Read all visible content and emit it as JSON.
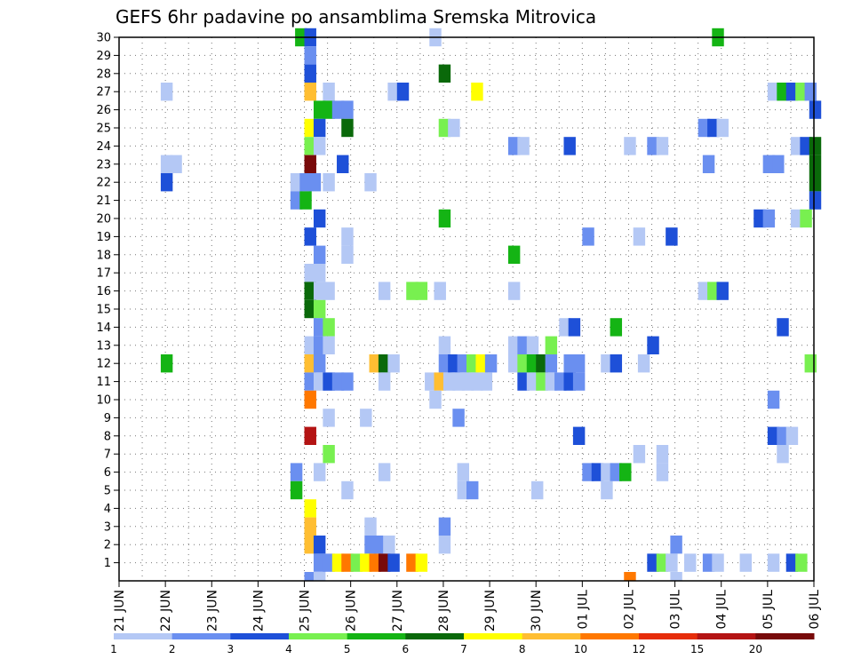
{
  "chart_data": {
    "type": "heatmap",
    "title": "GEFS 6hr padavine po ansamblima Sremska Mitrovica",
    "xlabel": "",
    "ylabel": "",
    "y_ticks": [
      "1",
      "2",
      "3",
      "4",
      "5",
      "6",
      "7",
      "8",
      "9",
      "10",
      "11",
      "12",
      "13",
      "14",
      "15",
      "16",
      "17",
      "18",
      "19",
      "20",
      "21",
      "22",
      "23",
      "24",
      "25",
      "26",
      "27",
      "28",
      "29",
      "30"
    ],
    "x_ticks": [
      "21 JUN",
      "22 JUN",
      "23 JUN",
      "24 JUN",
      "25 JUN",
      "26 JUN",
      "27 JUN",
      "28 JUN",
      "29 JUN",
      "30 JUN",
      "01 JUL",
      "02 JUL",
      "03 JUL",
      "04 JUL",
      "05 JUL",
      "06 JUL"
    ],
    "x_range_days": [
      0,
      15
    ],
    "y_range": [
      0,
      30
    ],
    "grid": true,
    "colorbar": {
      "labels": [
        "1",
        "2",
        "3",
        "4",
        "5",
        "6",
        "7",
        "8",
        "10",
        "12",
        "15",
        "20"
      ],
      "colors": [
        "#b4c8f5",
        "#6a8ff0",
        "#1e50d8",
        "#78f050",
        "#14b414",
        "#0a690a",
        "#ffff00",
        "#ffbe32",
        "#ff7800",
        "#e62d0a",
        "#b41414",
        "#780a0a"
      ]
    },
    "cells": [
      [
        30,
        3.8,
        5
      ],
      [
        30,
        4.0,
        3
      ],
      [
        30,
        6.7,
        1
      ],
      [
        30,
        12.8,
        5
      ],
      [
        29,
        4.0,
        2
      ],
      [
        28,
        4.0,
        3
      ],
      [
        28,
        6.9,
        6
      ],
      [
        27,
        0.9,
        1
      ],
      [
        27,
        4.0,
        8
      ],
      [
        27,
        4.4,
        1
      ],
      [
        27,
        5.8,
        1
      ],
      [
        27,
        6.0,
        3
      ],
      [
        27,
        7.6,
        7
      ],
      [
        27,
        14.0,
        1
      ],
      [
        27,
        14.2,
        5
      ],
      [
        27,
        14.4,
        3
      ],
      [
        27,
        14.6,
        4
      ],
      [
        27,
        14.8,
        2
      ],
      [
        26,
        4.2,
        5
      ],
      [
        26,
        4.4,
        5
      ],
      [
        26,
        4.6,
        2
      ],
      [
        26,
        4.8,
        2
      ],
      [
        26,
        14.9,
        3
      ],
      [
        25,
        4.0,
        7
      ],
      [
        25,
        4.2,
        3
      ],
      [
        25,
        4.8,
        6
      ],
      [
        25,
        6.9,
        4
      ],
      [
        25,
        7.1,
        1
      ],
      [
        25,
        12.5,
        2
      ],
      [
        25,
        12.7,
        3
      ],
      [
        25,
        12.9,
        1
      ],
      [
        24,
        4.0,
        4
      ],
      [
        24,
        4.2,
        1
      ],
      [
        24,
        8.4,
        2
      ],
      [
        24,
        8.6,
        1
      ],
      [
        24,
        9.6,
        3
      ],
      [
        24,
        10.9,
        1
      ],
      [
        24,
        11.4,
        2
      ],
      [
        24,
        11.6,
        1
      ],
      [
        24,
        14.5,
        1
      ],
      [
        24,
        14.7,
        3
      ],
      [
        24,
        14.9,
        6
      ],
      [
        23,
        0.9,
        1
      ],
      [
        23,
        1.1,
        1
      ],
      [
        23,
        4.0,
        12
      ],
      [
        23,
        4.7,
        3
      ],
      [
        23,
        12.6,
        2
      ],
      [
        23,
        13.9,
        2
      ],
      [
        23,
        14.1,
        2
      ],
      [
        23,
        14.9,
        6
      ],
      [
        22,
        0.9,
        3
      ],
      [
        22,
        3.7,
        1
      ],
      [
        22,
        3.9,
        2
      ],
      [
        22,
        4.1,
        2
      ],
      [
        22,
        4.4,
        1
      ],
      [
        22,
        5.3,
        1
      ],
      [
        22,
        14.9,
        6
      ],
      [
        21,
        3.7,
        2
      ],
      [
        21,
        3.9,
        5
      ],
      [
        21,
        14.9,
        3
      ],
      [
        20,
        4.2,
        3
      ],
      [
        20,
        6.9,
        5
      ],
      [
        20,
        13.7,
        3
      ],
      [
        20,
        13.9,
        2
      ],
      [
        20,
        14.5,
        1
      ],
      [
        20,
        14.7,
        4
      ],
      [
        19,
        4.0,
        3
      ],
      [
        19,
        4.8,
        1
      ],
      [
        19,
        10.0,
        2
      ],
      [
        19,
        11.1,
        1
      ],
      [
        19,
        11.8,
        3
      ],
      [
        18,
        4.2,
        2
      ],
      [
        18,
        4.8,
        1
      ],
      [
        18,
        8.4,
        5
      ],
      [
        17,
        4.0,
        1
      ],
      [
        17,
        4.2,
        1
      ],
      [
        16,
        4.0,
        6
      ],
      [
        16,
        4.2,
        1
      ],
      [
        16,
        4.4,
        1
      ],
      [
        16,
        5.6,
        1
      ],
      [
        16,
        6.2,
        4
      ],
      [
        16,
        6.4,
        4
      ],
      [
        16,
        6.8,
        1
      ],
      [
        16,
        8.4,
        1
      ],
      [
        16,
        12.5,
        1
      ],
      [
        16,
        12.7,
        4
      ],
      [
        16,
        12.9,
        3
      ],
      [
        15,
        4.0,
        6
      ],
      [
        15,
        4.2,
        4
      ],
      [
        14,
        4.2,
        2
      ],
      [
        14,
        4.4,
        4
      ],
      [
        14,
        9.5,
        1
      ],
      [
        14,
        9.7,
        3
      ],
      [
        14,
        10.6,
        5
      ],
      [
        14,
        14.2,
        3
      ],
      [
        13,
        4.0,
        1
      ],
      [
        13,
        4.2,
        2
      ],
      [
        13,
        4.4,
        1
      ],
      [
        13,
        6.9,
        1
      ],
      [
        13,
        8.4,
        1
      ],
      [
        13,
        8.6,
        2
      ],
      [
        13,
        8.8,
        1
      ],
      [
        13,
        9.2,
        4
      ],
      [
        13,
        11.4,
        3
      ],
      [
        12,
        0.9,
        5
      ],
      [
        12,
        4.0,
        8
      ],
      [
        12,
        4.2,
        2
      ],
      [
        12,
        5.4,
        8
      ],
      [
        12,
        5.6,
        6
      ],
      [
        12,
        5.8,
        1
      ],
      [
        12,
        6.9,
        2
      ],
      [
        12,
        7.1,
        3
      ],
      [
        12,
        7.3,
        2
      ],
      [
        12,
        7.5,
        4
      ],
      [
        12,
        7.7,
        7
      ],
      [
        12,
        7.9,
        2
      ],
      [
        12,
        8.4,
        1
      ],
      [
        12,
        8.6,
        4
      ],
      [
        12,
        8.8,
        5
      ],
      [
        12,
        9.0,
        6
      ],
      [
        12,
        9.2,
        2
      ],
      [
        12,
        9.6,
        2
      ],
      [
        12,
        9.8,
        2
      ],
      [
        12,
        10.4,
        1
      ],
      [
        12,
        10.6,
        3
      ],
      [
        12,
        11.2,
        1
      ],
      [
        12,
        14.8,
        4
      ],
      [
        11,
        4.0,
        2
      ],
      [
        11,
        4.2,
        1
      ],
      [
        11,
        4.4,
        3
      ],
      [
        11,
        4.6,
        2
      ],
      [
        11,
        4.8,
        2
      ],
      [
        11,
        5.6,
        1
      ],
      [
        11,
        6.6,
        1
      ],
      [
        11,
        6.8,
        8
      ],
      [
        11,
        7.0,
        1
      ],
      [
        11,
        7.2,
        1
      ],
      [
        11,
        7.4,
        1
      ],
      [
        11,
        7.6,
        1
      ],
      [
        11,
        7.8,
        1
      ],
      [
        11,
        8.6,
        3
      ],
      [
        11,
        8.8,
        1
      ],
      [
        11,
        9.0,
        4
      ],
      [
        11,
        9.2,
        1
      ],
      [
        11,
        9.4,
        2
      ],
      [
        11,
        9.6,
        3
      ],
      [
        11,
        9.8,
        2
      ],
      [
        10,
        4.0,
        9
      ],
      [
        10,
        6.7,
        1
      ],
      [
        10,
        14.0,
        2
      ],
      [
        9,
        4.4,
        1
      ],
      [
        9,
        5.2,
        1
      ],
      [
        9,
        7.2,
        2
      ],
      [
        8,
        4.0,
        11
      ],
      [
        8,
        9.8,
        3
      ],
      [
        8,
        14.0,
        3
      ],
      [
        8,
        14.2,
        2
      ],
      [
        8,
        14.4,
        1
      ],
      [
        7,
        4.4,
        4
      ],
      [
        7,
        11.1,
        1
      ],
      [
        7,
        11.6,
        1
      ],
      [
        7,
        14.2,
        1
      ],
      [
        6,
        3.7,
        2
      ],
      [
        6,
        4.2,
        1
      ],
      [
        6,
        5.6,
        1
      ],
      [
        6,
        7.3,
        1
      ],
      [
        6,
        10.0,
        2
      ],
      [
        6,
        10.2,
        3
      ],
      [
        6,
        10.4,
        1
      ],
      [
        6,
        10.6,
        2
      ],
      [
        6,
        10.8,
        5
      ],
      [
        6,
        11.6,
        1
      ],
      [
        5,
        3.7,
        5
      ],
      [
        5,
        4.8,
        1
      ],
      [
        5,
        7.3,
        1
      ],
      [
        5,
        7.5,
        2
      ],
      [
        5,
        8.9,
        1
      ],
      [
        5,
        10.4,
        1
      ],
      [
        4,
        4.0,
        7
      ],
      [
        3,
        4.0,
        8
      ],
      [
        3,
        6.9,
        2
      ],
      [
        3,
        5.3,
        1
      ],
      [
        2,
        4.0,
        8
      ],
      [
        2,
        4.2,
        3
      ],
      [
        2,
        5.3,
        2
      ],
      [
        2,
        5.5,
        2
      ],
      [
        2,
        5.7,
        1
      ],
      [
        2,
        6.9,
        1
      ],
      [
        2,
        11.9,
        2
      ],
      [
        1,
        4.2,
        2
      ],
      [
        1,
        4.4,
        2
      ],
      [
        1,
        4.6,
        7
      ],
      [
        1,
        4.8,
        9
      ],
      [
        1,
        5.0,
        4
      ],
      [
        1,
        5.2,
        7
      ],
      [
        1,
        5.4,
        9
      ],
      [
        1,
        5.6,
        12
      ],
      [
        1,
        5.8,
        3
      ],
      [
        1,
        6.2,
        9
      ],
      [
        1,
        6.4,
        7
      ],
      [
        1,
        11.4,
        3
      ],
      [
        1,
        11.6,
        4
      ],
      [
        1,
        11.8,
        1
      ],
      [
        1,
        12.2,
        1
      ],
      [
        1,
        12.6,
        2
      ],
      [
        1,
        12.8,
        1
      ],
      [
        1,
        13.4,
        1
      ],
      [
        1,
        14.0,
        1
      ],
      [
        1,
        14.4,
        3
      ],
      [
        1,
        14.6,
        4
      ],
      [
        0,
        4.0,
        2
      ],
      [
        0,
        4.2,
        1
      ],
      [
        0,
        10.9,
        9
      ],
      [
        0,
        11.9,
        1
      ]
    ]
  }
}
